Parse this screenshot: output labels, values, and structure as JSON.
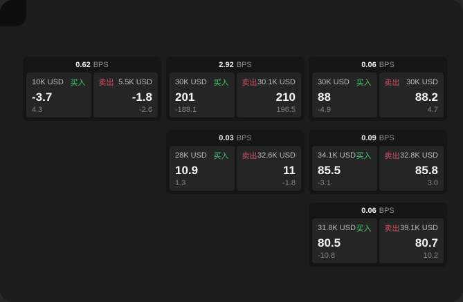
{
  "labels": {
    "bps": "BPS",
    "buy": "买入",
    "sell": "卖出"
  },
  "colors": {
    "buy_green": "#3ecb6e",
    "sell_red": "#d15064",
    "page_bg": "#1c1c1c",
    "card_bg": "#151515",
    "cell_bg": "#252525"
  },
  "cards": [
    {
      "bps": "0.62",
      "buy": {
        "size": "10K USD",
        "price": "-3.7",
        "change": "4.3"
      },
      "sell": {
        "size": "5.5K USD",
        "price": "-1.8",
        "change": "-2.6"
      }
    },
    {
      "bps": "2.92",
      "buy": {
        "size": "30K USD",
        "price": "201",
        "change": "-188.1"
      },
      "sell": {
        "size": "30.1K USD",
        "price": "210",
        "change": "196.5"
      }
    },
    {
      "bps": "0.06",
      "buy": {
        "size": "30K USD",
        "price": "88",
        "change": "-4.9"
      },
      "sell": {
        "size": "30K USD",
        "price": "88.2",
        "change": "4.7"
      }
    },
    {
      "bps": "0.03",
      "buy": {
        "size": "28K USD",
        "price": "10.9",
        "change": "1.3"
      },
      "sell": {
        "size": "32.6K USD",
        "price": "11",
        "change": "-1.8"
      }
    },
    {
      "bps": "0.09",
      "buy": {
        "size": "34.1K USD",
        "price": "85.5",
        "change": "-3.1"
      },
      "sell": {
        "size": "32.8K USD",
        "price": "85.8",
        "change": "3.0"
      }
    },
    {
      "bps": "0.06",
      "buy": {
        "size": "31.8K USD",
        "price": "80.5",
        "change": "-10.8"
      },
      "sell": {
        "size": "39.1K USD",
        "price": "80.7",
        "change": "10.2"
      }
    }
  ]
}
